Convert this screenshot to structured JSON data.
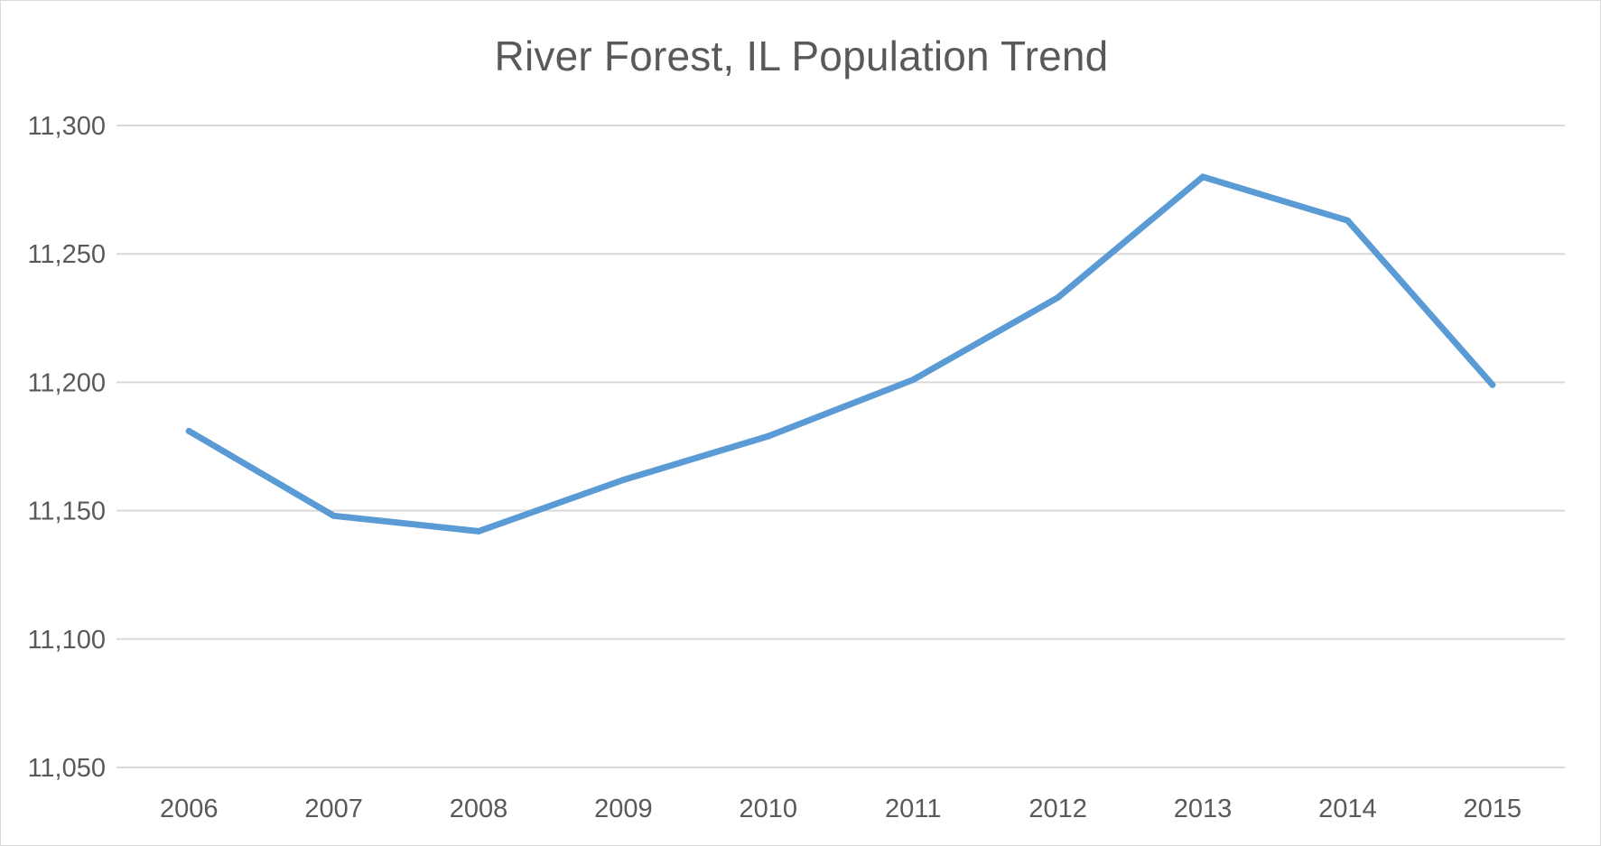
{
  "chart_data": {
    "type": "line",
    "title": "River Forest, IL Population Trend",
    "xlabel": "",
    "ylabel": "",
    "categories": [
      "2006",
      "2007",
      "2008",
      "2009",
      "2010",
      "2011",
      "2012",
      "2013",
      "2014",
      "2015"
    ],
    "series": [
      {
        "values": [
          11181,
          11148,
          11142,
          11162,
          11179,
          11201,
          11233,
          11280,
          11263,
          11199
        ],
        "color": "#5b9bd5"
      }
    ],
    "ylim": [
      11050,
      11300
    ],
    "yticks": [
      11050,
      11100,
      11150,
      11200,
      11250,
      11300
    ],
    "ytick_labels": [
      "11,050",
      "11,100",
      "11,150",
      "11,200",
      "11,250",
      "11,300"
    ],
    "grid": true,
    "grid_color": "#d9d9d9",
    "legend": "none"
  }
}
